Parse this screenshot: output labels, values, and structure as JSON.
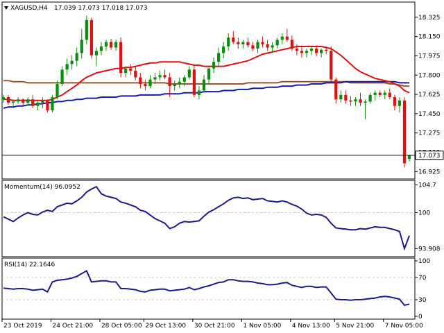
{
  "chart_data": {
    "type": "candlestick",
    "title": "XAGUSD,H4",
    "ohlc_header": "17.039 17.073 17.018 17.073",
    "last_price_label": "17.073",
    "colors": {
      "bull": "#0a8f0a",
      "bear": "#e01010",
      "sma_fast": "#e01010",
      "sma_mid": "#a0522d",
      "sma_slow": "#1a1aa8",
      "indicator": "#1a1a8c",
      "price_line": "#000000"
    },
    "price_axis": {
      "ylim": [
        16.87,
        18.45
      ],
      "ticks": [
        "18.325",
        "18.150",
        "17.975",
        "17.800",
        "17.625",
        "17.450",
        "17.275",
        "17.100",
        "16.925"
      ]
    },
    "time_labels": [
      "23 Oct 2019",
      "24 Oct 21:00",
      "28 Oct 05:00",
      "29 Oct 13:00",
      "30 Oct 21:00",
      "1 Nov 05:00",
      "4 Nov 13:00",
      "5 Nov 21:00",
      "7 Nov 05:00"
    ],
    "candles": [
      [
        17.58,
        17.62,
        17.55,
        17.6
      ],
      [
        17.6,
        17.62,
        17.53,
        17.55
      ],
      [
        17.55,
        17.58,
        17.5,
        17.56
      ],
      [
        17.56,
        17.6,
        17.54,
        17.58
      ],
      [
        17.58,
        17.59,
        17.52,
        17.55
      ],
      [
        17.55,
        17.6,
        17.53,
        17.58
      ],
      [
        17.58,
        17.62,
        17.5,
        17.52
      ],
      [
        17.52,
        17.57,
        17.48,
        17.55
      ],
      [
        17.55,
        17.6,
        17.5,
        17.57
      ],
      [
        17.57,
        17.58,
        17.46,
        17.48
      ],
      [
        17.48,
        17.62,
        17.46,
        17.6
      ],
      [
        17.6,
        17.75,
        17.58,
        17.72
      ],
      [
        17.72,
        17.88,
        17.7,
        17.85
      ],
      [
        17.85,
        17.95,
        17.8,
        17.9
      ],
      [
        17.9,
        17.98,
        17.85,
        17.93
      ],
      [
        17.93,
        18.05,
        17.88,
        18.0
      ],
      [
        18.0,
        18.22,
        17.95,
        18.12
      ],
      [
        18.12,
        18.34,
        18.08,
        18.3
      ],
      [
        18.3,
        18.32,
        17.95,
        17.98
      ],
      [
        17.98,
        18.05,
        17.88,
        18.02
      ],
      [
        18.02,
        18.1,
        17.98,
        18.06
      ],
      [
        18.06,
        18.12,
        18.02,
        18.1
      ],
      [
        18.1,
        18.13,
        18.03,
        18.05
      ],
      [
        18.05,
        18.12,
        18.02,
        18.1
      ],
      [
        18.1,
        18.14,
        17.78,
        17.82
      ],
      [
        17.82,
        17.88,
        17.78,
        17.86
      ],
      [
        17.86,
        17.9,
        17.8,
        17.84
      ],
      [
        17.84,
        17.88,
        17.75,
        17.78
      ],
      [
        17.78,
        17.82,
        17.68,
        17.72
      ],
      [
        17.72,
        17.76,
        17.66,
        17.7
      ],
      [
        17.7,
        17.8,
        17.68,
        17.76
      ],
      [
        17.76,
        17.82,
        17.72,
        17.78
      ],
      [
        17.78,
        17.84,
        17.75,
        17.8
      ],
      [
        17.8,
        17.85,
        17.76,
        17.78
      ],
      [
        17.78,
        17.82,
        17.6,
        17.7
      ],
      [
        17.7,
        17.75,
        17.66,
        17.72
      ],
      [
        17.72,
        17.78,
        17.68,
        17.74
      ],
      [
        17.74,
        17.8,
        17.7,
        17.78
      ],
      [
        17.78,
        17.88,
        17.76,
        17.85
      ],
      [
        17.85,
        17.9,
        17.6,
        17.62
      ],
      [
        17.62,
        17.7,
        17.58,
        17.66
      ],
      [
        17.66,
        17.8,
        17.64,
        17.76
      ],
      [
        17.76,
        17.88,
        17.72,
        17.86
      ],
      [
        17.86,
        17.96,
        17.82,
        17.92
      ],
      [
        17.92,
        18.05,
        17.88,
        18.0
      ],
      [
        18.0,
        18.1,
        17.95,
        18.06
      ],
      [
        18.06,
        18.18,
        18.02,
        18.14
      ],
      [
        18.14,
        18.2,
        18.08,
        18.1
      ],
      [
        18.1,
        18.14,
        18.04,
        18.08
      ],
      [
        18.08,
        18.12,
        18.04,
        18.1
      ],
      [
        18.1,
        18.14,
        18.05,
        18.07
      ],
      [
        18.07,
        18.1,
        18.02,
        18.04
      ],
      [
        18.04,
        18.12,
        18.0,
        18.1
      ],
      [
        18.1,
        18.15,
        18.05,
        18.08
      ],
      [
        18.08,
        18.12,
        18.02,
        18.05
      ],
      [
        18.05,
        18.1,
        18.0,
        18.07
      ],
      [
        18.07,
        18.14,
        18.04,
        18.12
      ],
      [
        18.12,
        18.18,
        18.08,
        18.15
      ],
      [
        18.15,
        18.22,
        18.1,
        18.12
      ],
      [
        18.12,
        18.16,
        18.02,
        18.04
      ],
      [
        18.04,
        18.08,
        17.98,
        18.02
      ],
      [
        18.02,
        18.06,
        17.96,
        18.0
      ],
      [
        18.0,
        18.04,
        17.96,
        18.02
      ],
      [
        18.02,
        18.06,
        17.98,
        18.04
      ],
      [
        18.04,
        18.07,
        17.97,
        18.0
      ],
      [
        18.0,
        18.04,
        17.96,
        18.03
      ],
      [
        18.03,
        18.06,
        17.99,
        18.02
      ],
      [
        18.02,
        18.06,
        17.74,
        17.76
      ],
      [
        17.76,
        17.78,
        17.54,
        17.58
      ],
      [
        17.58,
        17.66,
        17.55,
        17.62
      ],
      [
        17.62,
        17.66,
        17.54,
        17.57
      ],
      [
        17.57,
        17.61,
        17.52,
        17.56
      ],
      [
        17.56,
        17.6,
        17.52,
        17.58
      ],
      [
        17.58,
        17.64,
        17.52,
        17.55
      ],
      [
        17.55,
        17.58,
        17.4,
        17.56
      ],
      [
        17.56,
        17.64,
        17.54,
        17.62
      ],
      [
        17.62,
        17.66,
        17.57,
        17.64
      ],
      [
        17.64,
        17.66,
        17.6,
        17.62
      ],
      [
        17.62,
        17.66,
        17.58,
        17.64
      ],
      [
        17.64,
        17.68,
        17.58,
        17.6
      ],
      [
        17.6,
        17.62,
        17.48,
        17.52
      ],
      [
        17.52,
        17.6,
        17.46,
        17.57
      ],
      [
        17.57,
        17.6,
        16.96,
        17.0
      ],
      [
        17.039,
        17.073,
        17.018,
        17.073
      ]
    ],
    "sma_fast": [
      17.58,
      17.58,
      17.57,
      17.57,
      17.57,
      17.57,
      17.57,
      17.57,
      17.57,
      17.57,
      17.58,
      17.6,
      17.62,
      17.65,
      17.68,
      17.71,
      17.75,
      17.78,
      17.8,
      17.82,
      17.83,
      17.84,
      17.85,
      17.86,
      17.86,
      17.87,
      17.87,
      17.88,
      17.89,
      17.9,
      17.91,
      17.91,
      17.92,
      17.92,
      17.92,
      17.92,
      17.92,
      17.91,
      17.9,
      17.89,
      17.89,
      17.88,
      17.88,
      17.88,
      17.88,
      17.88,
      17.89,
      17.9,
      17.91,
      17.92,
      17.93,
      17.95,
      17.97,
      17.99,
      18.0,
      18.01,
      18.02,
      18.03,
      18.04,
      18.05,
      18.06,
      18.06,
      18.06,
      18.06,
      18.06,
      18.06,
      18.05,
      18.04,
      18.01,
      17.98,
      17.94,
      17.9,
      17.86,
      17.83,
      17.81,
      17.79,
      17.77,
      17.76,
      17.75,
      17.74,
      17.72,
      17.7,
      17.66,
      17.64
    ],
    "sma_mid": [
      17.75,
      17.75,
      17.74,
      17.74,
      17.74,
      17.73,
      17.73,
      17.73,
      17.73,
      17.73,
      17.73,
      17.73,
      17.73,
      17.73,
      17.73,
      17.73,
      17.73,
      17.73,
      17.73,
      17.73,
      17.73,
      17.73,
      17.73,
      17.73,
      17.73,
      17.73,
      17.73,
      17.73,
      17.73,
      17.73,
      17.73,
      17.73,
      17.73,
      17.73,
      17.72,
      17.72,
      17.72,
      17.72,
      17.72,
      17.72,
      17.72,
      17.72,
      17.72,
      17.72,
      17.72,
      17.72,
      17.72,
      17.72,
      17.72,
      17.72,
      17.73,
      17.73,
      17.73,
      17.73,
      17.73,
      17.73,
      17.73,
      17.74,
      17.74,
      17.74,
      17.74,
      17.74,
      17.74,
      17.74,
      17.74,
      17.74,
      17.74,
      17.74,
      17.74,
      17.74,
      17.74,
      17.73,
      17.73,
      17.73,
      17.73,
      17.73,
      17.73,
      17.73,
      17.73,
      17.72,
      17.72,
      17.71,
      17.7,
      17.7
    ],
    "sma_slow": [
      17.5,
      17.51,
      17.51,
      17.52,
      17.52,
      17.53,
      17.53,
      17.54,
      17.54,
      17.55,
      17.55,
      17.56,
      17.56,
      17.57,
      17.57,
      17.58,
      17.58,
      17.59,
      17.59,
      17.59,
      17.6,
      17.6,
      17.6,
      17.6,
      17.61,
      17.61,
      17.61,
      17.61,
      17.62,
      17.62,
      17.62,
      17.62,
      17.62,
      17.63,
      17.63,
      17.63,
      17.63,
      17.64,
      17.64,
      17.64,
      17.64,
      17.65,
      17.65,
      17.65,
      17.65,
      17.66,
      17.66,
      17.66,
      17.67,
      17.67,
      17.67,
      17.68,
      17.68,
      17.68,
      17.69,
      17.69,
      17.69,
      17.7,
      17.7,
      17.7,
      17.71,
      17.71,
      17.71,
      17.72,
      17.72,
      17.72,
      17.73,
      17.73,
      17.73,
      17.73,
      17.74,
      17.74,
      17.74,
      17.74,
      17.74,
      17.74,
      17.74,
      17.74,
      17.74,
      17.74,
      17.74,
      17.73,
      17.73,
      17.73
    ],
    "momentum": {
      "label": "Momentum(14) 96.0952",
      "ylim": [
        93.0,
        105.0
      ],
      "ticks": [
        "104.7",
        "100",
        "93.908"
      ],
      "level": 100,
      "values": [
        99.3,
        98.9,
        98.5,
        99.1,
        99.6,
        100.0,
        99.7,
        99.6,
        100.1,
        100.4,
        100.2,
        101.0,
        101.3,
        101.6,
        101.5,
        102.0,
        102.6,
        103.5,
        104.0,
        104.4,
        103.2,
        102.8,
        102.6,
        102.4,
        101.8,
        101.6,
        101.3,
        101.0,
        100.4,
        100.2,
        99.6,
        99.0,
        98.6,
        98.2,
        97.3,
        97.6,
        98.2,
        98.5,
        98.4,
        98.5,
        98.6,
        99.4,
        100.1,
        100.5,
        101.0,
        101.5,
        102.1,
        102.5,
        102.6,
        102.4,
        102.5,
        102.2,
        102.3,
        102.4,
        102.0,
        101.9,
        101.8,
        102.0,
        101.8,
        101.4,
        101.1,
        100.6,
        99.9,
        99.6,
        99.7,
        99.6,
        99.2,
        98.2,
        97.4,
        97.3,
        97.2,
        97.1,
        97.1,
        97.3,
        97.2,
        97.4,
        97.6,
        97.5,
        97.5,
        97.3,
        97.1,
        96.8,
        93.9,
        96.1
      ]
    },
    "rsi": {
      "label": "RSI(14) 22.1646",
      "ylim": [
        0,
        100
      ],
      "ticks": [
        "100",
        "70",
        "30",
        "0"
      ],
      "levels": [
        70,
        30
      ],
      "values": [
        51,
        50,
        49,
        50,
        50,
        49,
        47,
        48,
        49,
        44,
        62,
        65,
        66,
        67,
        69,
        72,
        77,
        82,
        62,
        63,
        64,
        64,
        62,
        62,
        50,
        50,
        49,
        48,
        45,
        44,
        47,
        48,
        49,
        49,
        46,
        47,
        48,
        49,
        52,
        48,
        50,
        53,
        55,
        58,
        61,
        62,
        66,
        66,
        64,
        63,
        63,
        62,
        60,
        59,
        57,
        57,
        58,
        60,
        61,
        56,
        54,
        52,
        54,
        54,
        52,
        53,
        53,
        42,
        31,
        30,
        30,
        29,
        30,
        30,
        31,
        32,
        33,
        35,
        36,
        35,
        33,
        31,
        20,
        22
      ]
    }
  }
}
